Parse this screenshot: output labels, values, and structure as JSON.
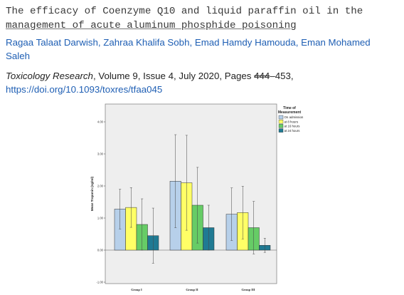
{
  "article": {
    "title_line1": "The efficacy of Coenzyme Q10 and liquid paraffin oil in the",
    "title_line2": "management of acute aluminum phosphide poisoning",
    "authors_line1": "Ragaa Talaat Darwish, Zahraa Khalifa Sobh, Emad Hamdy Hamouda, Eman Mohamed",
    "authors_line2": "Saleh",
    "journal": "Toxicology Research",
    "volume_issue": ", Volume 9, Issue 4, July 2020, Pages ",
    "pages_start": "444",
    "pages_end": "453,",
    "doi": "https://doi.org/10.1093/toxres/tfaa045"
  },
  "colors": {
    "link": "#1f5fb4",
    "plot_bg": "#eeeeee",
    "series": [
      "#b7d0ea",
      "#ffff66",
      "#66cc66",
      "#1f7a93"
    ]
  },
  "chart_data": {
    "type": "bar",
    "title": "",
    "xlabel": "",
    "ylabel": "Mean Troponin (ng/ml)",
    "ylim": [
      -1.0,
      4.0
    ],
    "yticks": [
      "-1.00",
      "0.00",
      "1.00",
      "2.00",
      "3.00",
      "4.00"
    ],
    "grid": false,
    "legend_title": "Time of Measurement",
    "legend_position": "top-right",
    "categories": [
      "Group I",
      "Group II",
      "Group III"
    ],
    "series": [
      {
        "name": "On admission",
        "values": [
          1.28,
          2.15,
          1.12
        ],
        "err": [
          0.62,
          1.45,
          0.82
        ]
      },
      {
        "name": "at 8 hours",
        "values": [
          1.33,
          2.1,
          1.17
        ],
        "err": [
          0.62,
          1.48,
          0.82
        ]
      },
      {
        "name": "at 16 hours",
        "values": [
          0.8,
          1.4,
          0.7
        ],
        "err": [
          0.8,
          1.18,
          0.82
        ]
      },
      {
        "name": "at 24 hours",
        "values": [
          0.45,
          0.7,
          0.15
        ],
        "err": [
          0.86,
          0.7,
          0.22
        ]
      }
    ]
  }
}
